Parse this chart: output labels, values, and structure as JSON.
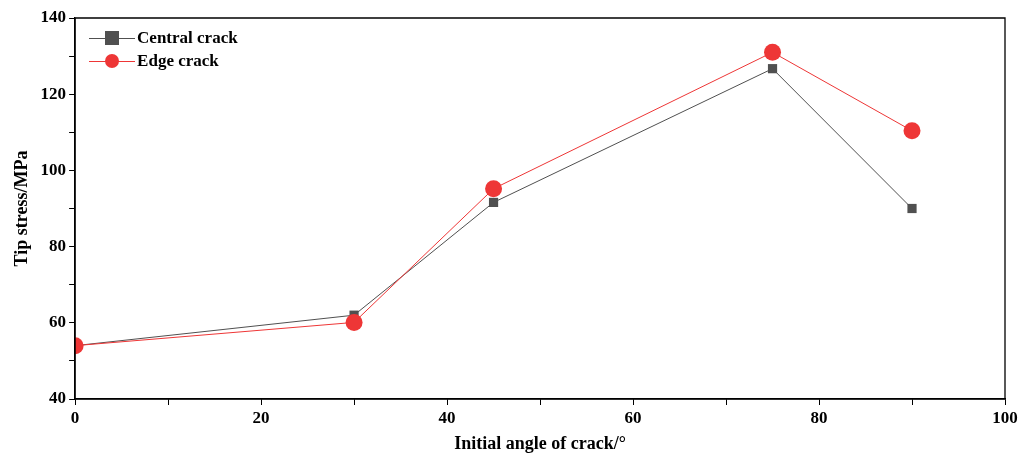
{
  "chart_data": {
    "type": "line",
    "xlabel": "Initial angle of crack/°",
    "ylabel": "Tip stress/MPa",
    "x": [
      0,
      30,
      45,
      75,
      90
    ],
    "series": [
      {
        "name": "Central crack",
        "color": "#505050",
        "marker": "square",
        "values": [
          54,
          62,
          91.6,
          126.7,
          90
        ]
      },
      {
        "name": "Edge crack",
        "color": "#ee3636",
        "marker": "circle",
        "values": [
          54,
          60.1,
          95.2,
          131,
          110.4
        ]
      }
    ],
    "xlim": [
      0,
      100
    ],
    "xticks": [
      0,
      {
        "value": 10,
        "label": null
      },
      20,
      {
        "value": 30,
        "label": null
      },
      40,
      {
        "value": 50,
        "label": null
      },
      60,
      {
        "value": 70,
        "label": null
      },
      80,
      {
        "value": 90,
        "label": null
      },
      100
    ],
    "ylim": [
      40,
      140
    ],
    "yticks": [
      40,
      {
        "value": 50,
        "label": null
      },
      60,
      {
        "value": 70,
        "label": null
      },
      80,
      {
        "value": 90,
        "label": null
      },
      100,
      {
        "value": 110,
        "label": null
      },
      120,
      {
        "value": 130,
        "label": null
      },
      140
    ],
    "grid": false,
    "legend": "top left",
    "line_style": "solid"
  }
}
